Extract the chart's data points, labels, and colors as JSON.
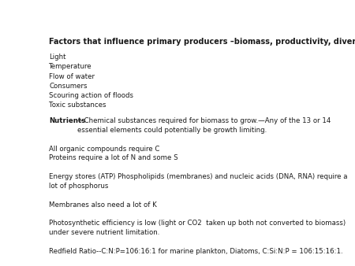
{
  "background_color": "#ffffff",
  "title": "Factors that influence primary producers –biomass, productivity, diversity",
  "title_fontsize": 7.0,
  "bullet_fontsize": 6.2,
  "para_fontsize": 6.2,
  "text_color": "#1a1a1a",
  "bullet_items": [
    "Light",
    "Temperature",
    "Flow of water",
    "Consumers",
    "Scouring action of floods",
    "Toxic substances"
  ],
  "paragraphs": [
    {
      "bold_part": "Nutrients",
      "normal_part": "—Chemical substances required for biomass to grow.—Any of the 13 or 14\nessential elements could potentially be growth limiting."
    },
    {
      "bold_part": "",
      "normal_part": "All organic compounds require C\nProteins require a lot of N and some S"
    },
    {
      "bold_part": "",
      "normal_part": "Energy stores (ATP) Phospholipids (membranes) and nucleic acids (DNA, RNA) require a\nlot of phosphorus"
    },
    {
      "bold_part": "",
      "normal_part": "Membranes also need a lot of K"
    },
    {
      "bold_part": "",
      "normal_part": "Photosynthetic efficiency is low (light or CO2  taken up both not converted to biomass)\nunder severe nutrient limitation."
    },
    {
      "bold_part": "",
      "normal_part": "Redfield Ratio--C:N:P=106:16:1 for marine plankton, Diatoms, C:Si:N:P = 106:15:16:1."
    }
  ]
}
